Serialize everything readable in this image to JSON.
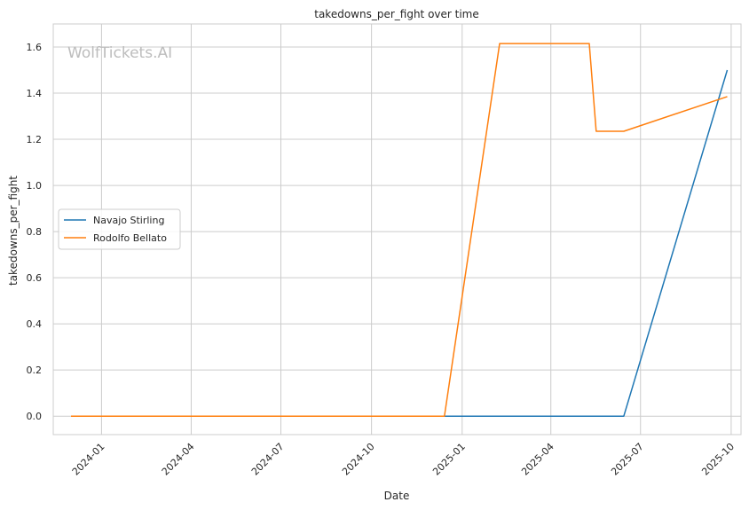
{
  "chart_data": {
    "type": "line",
    "title": "takedowns_per_fight over time",
    "xlabel": "Date",
    "ylabel": "takedowns_per_fight",
    "watermark": "WolfTickets.AI",
    "xlim": [
      "2023-11-13",
      "2025-10-11"
    ],
    "ylim": [
      -0.08,
      1.7
    ],
    "x_ticks": [
      "2024-01-01",
      "2024-04-01",
      "2024-07-01",
      "2024-10-01",
      "2025-01-01",
      "2025-04-01",
      "2025-07-01",
      "2025-10-01"
    ],
    "x_tick_labels": [
      "2024-01",
      "2024-04",
      "2024-07",
      "2024-10",
      "2025-01",
      "2025-04",
      "2025-07",
      "2025-10"
    ],
    "y_ticks": [
      0.0,
      0.2,
      0.4,
      0.6,
      0.8,
      1.0,
      1.2,
      1.4,
      1.6
    ],
    "y_tick_labels": [
      "0.0",
      "0.2",
      "0.4",
      "0.6",
      "0.8",
      "1.0",
      "1.2",
      "1.4",
      "1.6"
    ],
    "grid": true,
    "legend_position": "center-left",
    "series": [
      {
        "name": "Navajo Stirling",
        "color": "#1f77b4",
        "points": [
          {
            "x": "2023-12-01",
            "y": 0.0
          },
          {
            "x": "2025-06-14",
            "y": 0.0
          },
          {
            "x": "2025-09-27",
            "y": 1.5
          }
        ]
      },
      {
        "name": "Rodolfo Bellato",
        "color": "#ff7f0e",
        "points": [
          {
            "x": "2023-12-01",
            "y": 0.0
          },
          {
            "x": "2024-12-14",
            "y": 0.0
          },
          {
            "x": "2025-02-08",
            "y": 1.615
          },
          {
            "x": "2025-05-10",
            "y": 1.615
          },
          {
            "x": "2025-05-17",
            "y": 1.235
          },
          {
            "x": "2025-06-14",
            "y": 1.235
          },
          {
            "x": "2025-09-27",
            "y": 1.385
          }
        ]
      }
    ]
  }
}
